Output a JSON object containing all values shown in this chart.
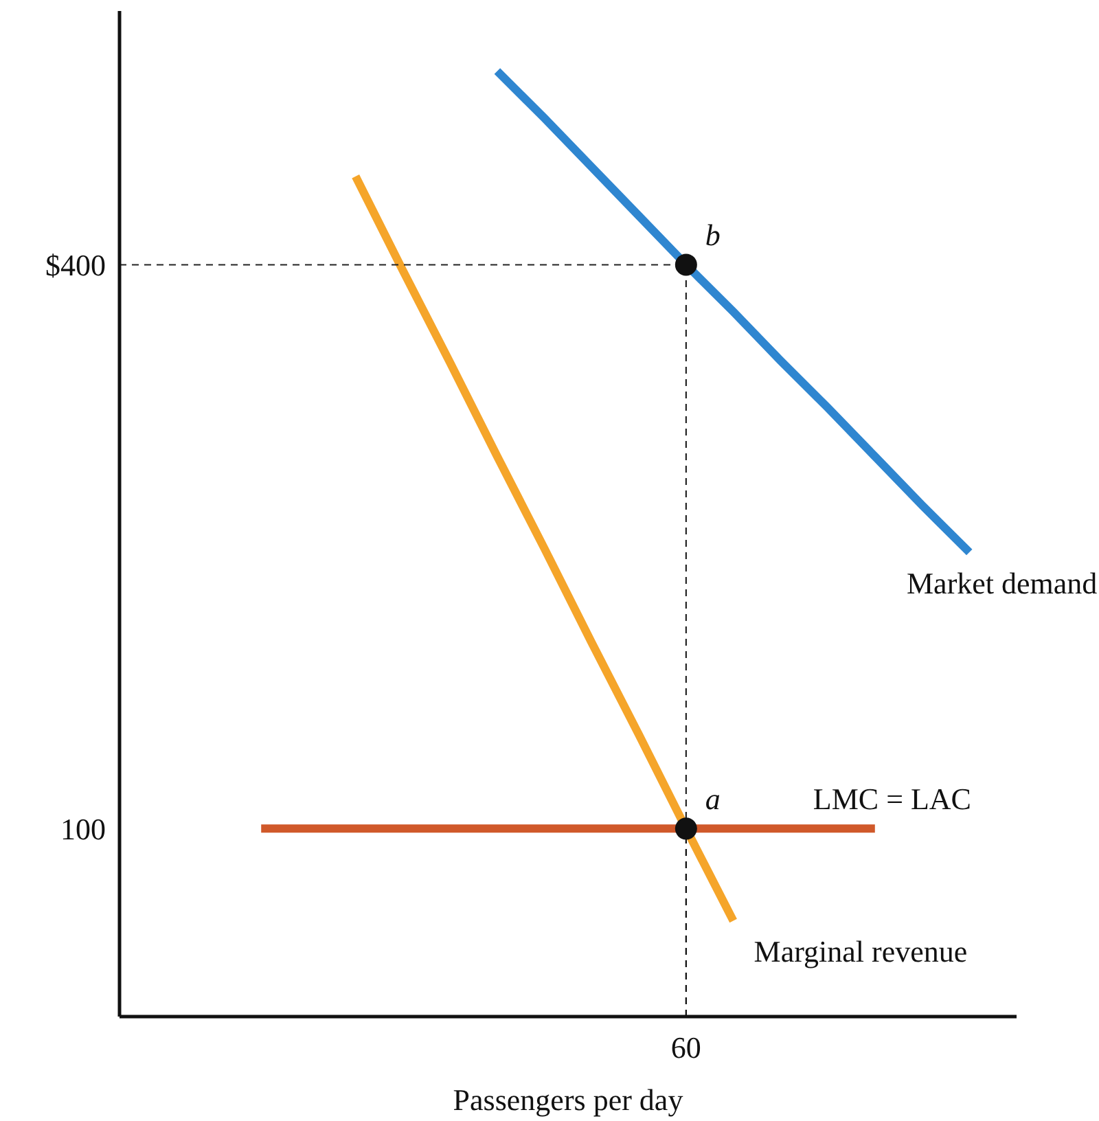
{
  "chart_data": {
    "type": "line",
    "xlabel": "Passengers per day",
    "categories": [
      null,
      null,
      null,
      null,
      null,
      null,
      null,
      null,
      null,
      null,
      null,
      null,
      "60",
      null,
      null,
      null,
      null,
      null,
      null,
      null
    ],
    "ylim": [
      0,
      535
    ],
    "yticks": [
      100,
      {
        "value": 400,
        "label": "$400"
      }
    ],
    "grid": false,
    "marker": "none",
    "series": [
      {
        "name": "Market demand",
        "color": "#2f86d0",
        "values": [
          null,
          null,
          null,
          null,
          null,
          null,
          null,
          null,
          503,
          478,
          452,
          426,
          400,
          375,
          349,
          324,
          298,
          272,
          247,
          null
        ]
      },
      {
        "name": "Marginal revenue",
        "color": "#f5a52a",
        "values": [
          null,
          null,
          null,
          null,
          null,
          447,
          397,
          348,
          298,
          249,
          199,
          150,
          100,
          51,
          null,
          null,
          null,
          null,
          null,
          null
        ]
      },
      {
        "name": "LMC = LAC",
        "color": "#d0592a",
        "values": [
          null,
          null,
          null,
          100,
          100,
          100,
          100,
          100,
          100,
          100,
          100,
          100,
          100,
          100,
          100,
          100,
          100,
          null,
          null,
          null
        ]
      },
      {
        "color": "#222222",
        "line_style": "dashed",
        "values": [
          400,
          400,
          400,
          400,
          400,
          400,
          400,
          400,
          400,
          400,
          400,
          400,
          400,
          null,
          null,
          null,
          null,
          null,
          null,
          null
        ]
      },
      {
        "type": "lollipop",
        "color": "#111111",
        "line_style": "dashed",
        "marker": "circle",
        "x": [
          "60",
          "60"
        ],
        "values": [
          100,
          400
        ]
      }
    ],
    "annotations": [
      {
        "text": "a",
        "x": "60",
        "y": 100
      },
      {
        "text": "b",
        "x": "60",
        "y": 400
      }
    ]
  }
}
